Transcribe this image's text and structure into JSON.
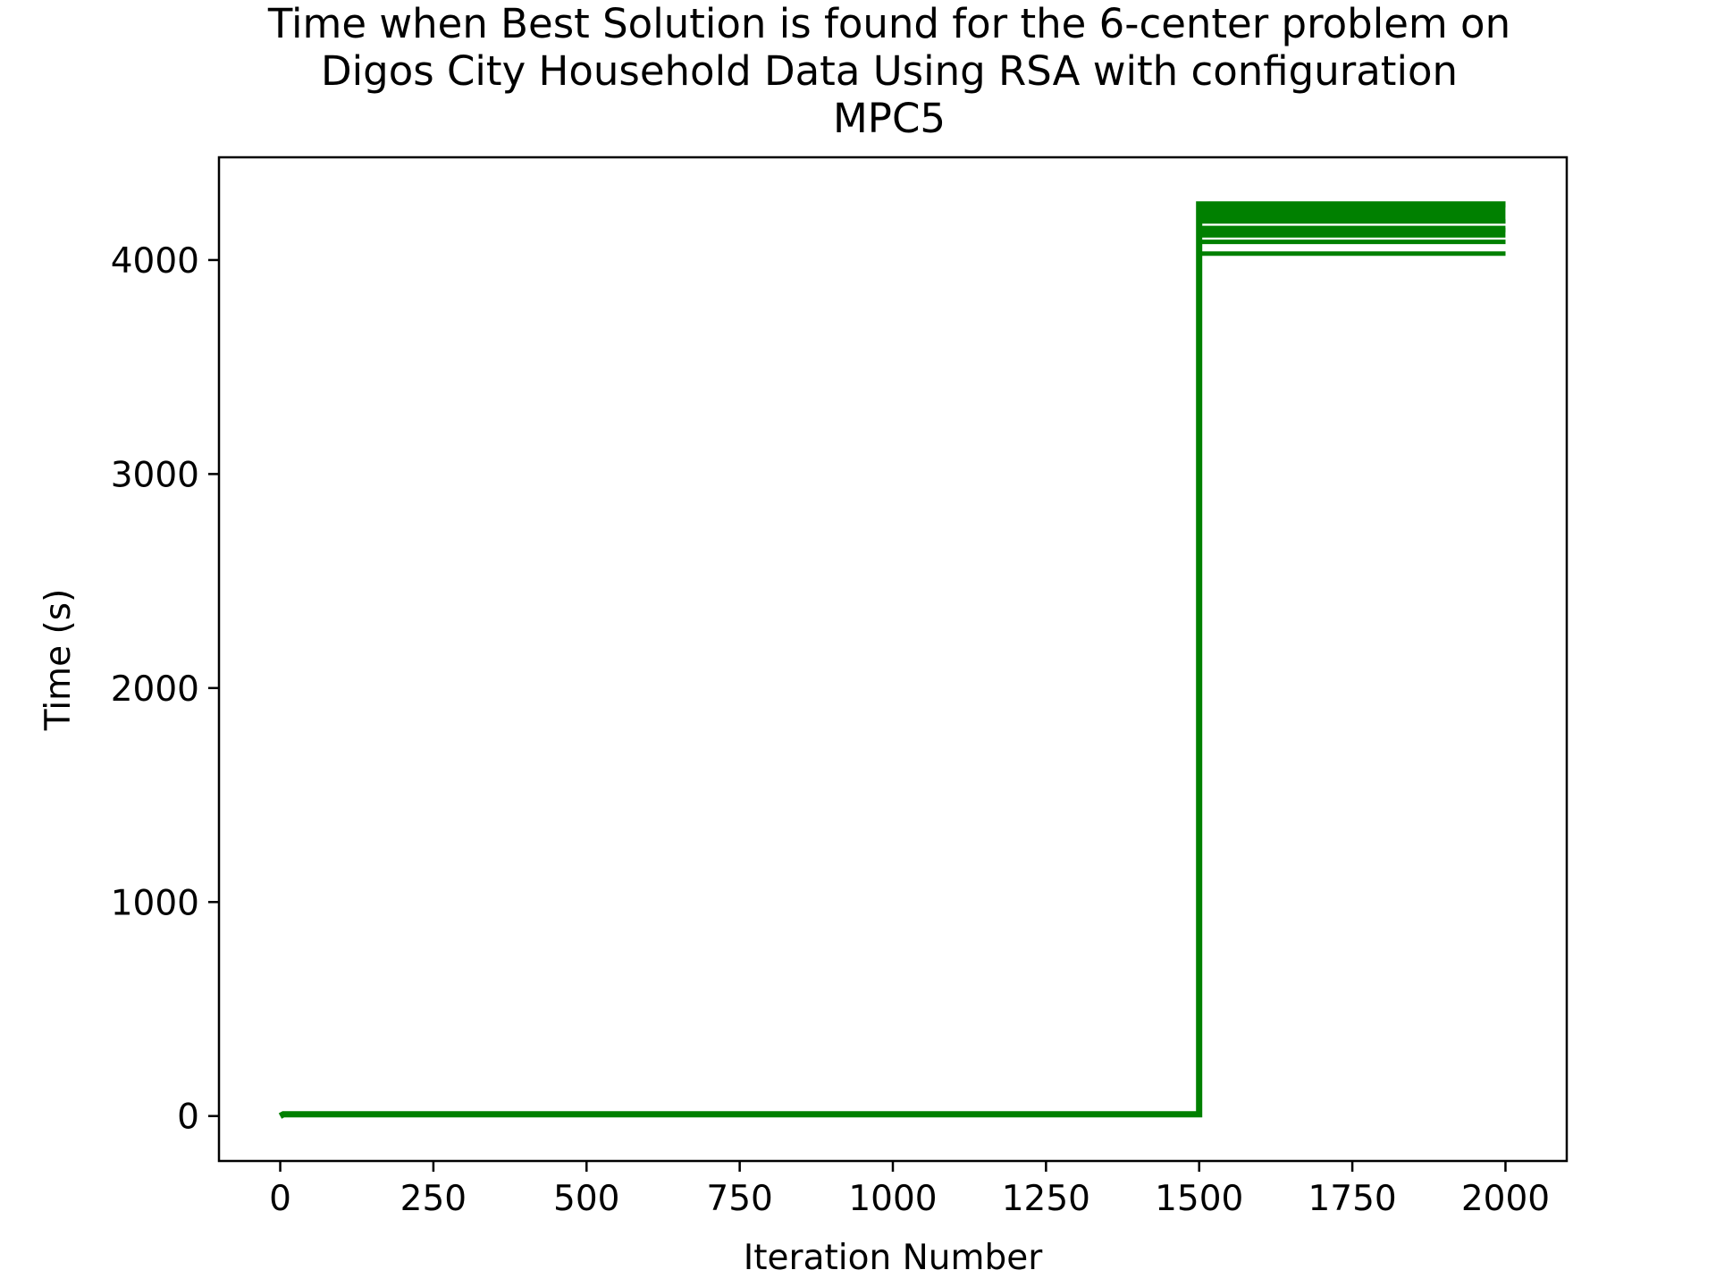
{
  "chart_data": {
    "type": "line",
    "title_lines": [
      "Time when Best Solution is found for the 6-center problem on",
      "Digos City Household Data Using RSA with configuration",
      "MPC5"
    ],
    "xlabel": "Iteration Number",
    "ylabel": "Time (s)",
    "xlim": [
      -100,
      2100
    ],
    "ylim": [
      -210,
      4480
    ],
    "xticks": [
      0,
      250,
      500,
      750,
      1000,
      1250,
      1500,
      1750,
      2000
    ],
    "yticks": [
      0,
      1000,
      2000,
      3000,
      4000
    ],
    "grid": false,
    "legend": "none",
    "line_color": "#008000",
    "series": [
      {
        "x": [
          0,
          5,
          1499,
          1500,
          1500,
          1501,
          2000
        ],
        "y": [
          0,
          8,
          8,
          8,
          4260,
          4260,
          4260
        ]
      },
      {
        "x": [
          1500,
          1501,
          2000
        ],
        "y": [
          4180,
          4180,
          4180
        ]
      },
      {
        "x": [
          1500,
          1501,
          2000
        ],
        "y": [
          4140,
          4140,
          4140
        ]
      },
      {
        "x": [
          1500,
          1501,
          2000
        ],
        "y": [
          4085,
          4085,
          4085
        ]
      },
      {
        "x": [
          1500,
          1501,
          2000
        ],
        "y": [
          4030,
          4030,
          4030
        ]
      }
    ]
  }
}
